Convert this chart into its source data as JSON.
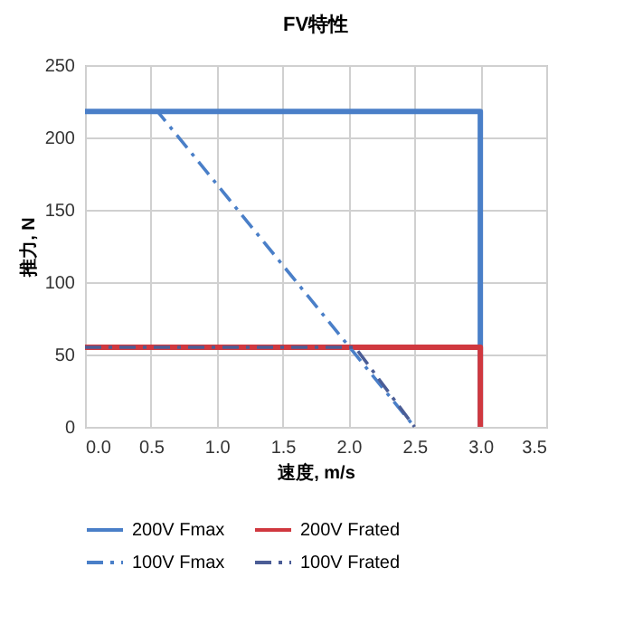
{
  "chart_data": {
    "type": "line",
    "title": "FV特性",
    "xlabel": "速度, m/s",
    "ylabel": "推力, N",
    "xlim": [
      0,
      3.5
    ],
    "xticks": [
      {
        "value": 0,
        "label": "0.0"
      },
      0.5,
      {
        "value": 1,
        "label": "1.0"
      },
      1.5,
      {
        "value": 2,
        "label": "2.0"
      },
      2.5,
      {
        "value": 3,
        "label": "3.0"
      },
      3.5
    ],
    "ylim": [
      0,
      250
    ],
    "yticks": [
      0,
      50,
      100,
      150,
      200,
      250
    ],
    "grid": true,
    "legend": "bottom",
    "marker": "none",
    "series": [
      {
        "name": "200V Fmax",
        "color": "#4a7fc8",
        "line_style": "solid",
        "x": [
          0,
          3,
          3
        ],
        "values": [
          218,
          218,
          0
        ]
      },
      {
        "name": "200V Frated",
        "color": "#d0383f",
        "line_style": "solid",
        "x": [
          0,
          3,
          3
        ],
        "values": [
          55,
          55,
          0
        ]
      },
      {
        "name": "100V Fmax",
        "color": "#4a7fc8",
        "line_style": "dashed",
        "x": [
          0,
          0.55,
          2.5
        ],
        "values": [
          218,
          218,
          0
        ]
      },
      {
        "name": "100V Frated",
        "color": "#4b5d96",
        "line_style": "dashed",
        "x": [
          0,
          2.05,
          2.5
        ],
        "values": [
          55,
          55,
          0
        ]
      }
    ]
  }
}
